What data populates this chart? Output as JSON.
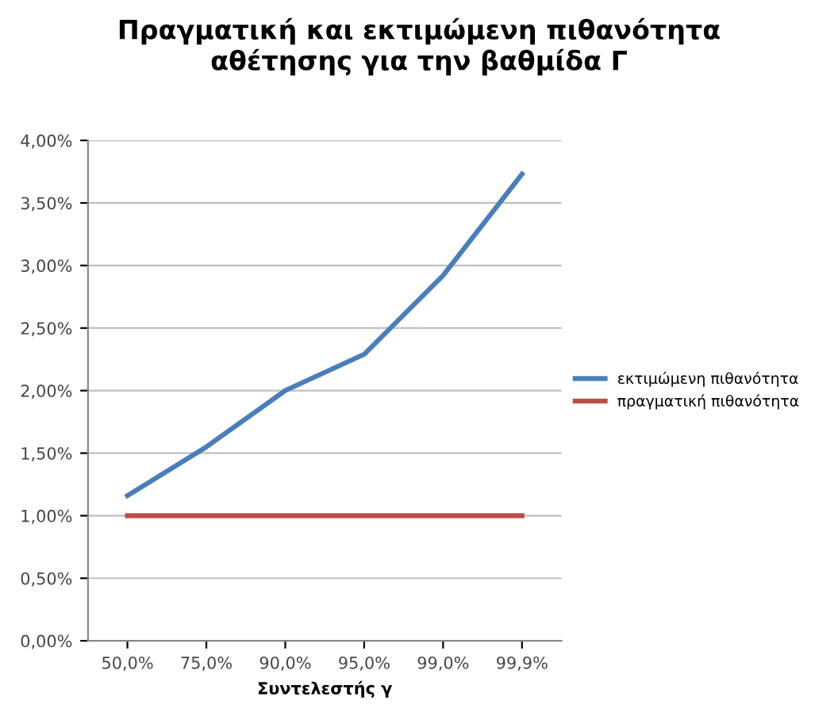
{
  "chart_data": {
    "type": "line",
    "title": "Πραγματική και εκτιμώμενη πιθανότητα\nαθέτησης για την βαθμίδα Γ",
    "xlabel": "Συντελεστής γ",
    "categories": [
      "50,0%",
      "75,0%",
      "90,0%",
      "95,0%",
      "99,0%",
      "99,9%"
    ],
    "series": [
      {
        "name": "εκτιμώμενη πιθανότητα",
        "color": "#4a7ebb",
        "values": [
          1.16,
          1.55,
          2.0,
          2.29,
          2.92,
          3.73
        ]
      },
      {
        "name": "πραγματική πιθανότητα",
        "color": "#be4b48",
        "values": [
          1.0,
          1.0,
          1.0,
          1.0,
          1.0,
          1.0
        ]
      }
    ],
    "ylim": [
      0,
      4
    ],
    "yticks": [
      {
        "value": 0,
        "label": "0,00%"
      },
      {
        "value": 0.5,
        "label": "0,50%"
      },
      {
        "value": 1,
        "label": "1,00%"
      },
      {
        "value": 1.5,
        "label": "1,50%"
      },
      {
        "value": 2,
        "label": "2,00%"
      },
      {
        "value": 2.5,
        "label": "2,50%"
      },
      {
        "value": 3,
        "label": "3,00%"
      },
      {
        "value": 3.5,
        "label": "3,50%"
      },
      {
        "value": 4,
        "label": "4,00%"
      }
    ],
    "grid": "y",
    "legend": "right",
    "marker": "none",
    "line_style": "solid"
  }
}
